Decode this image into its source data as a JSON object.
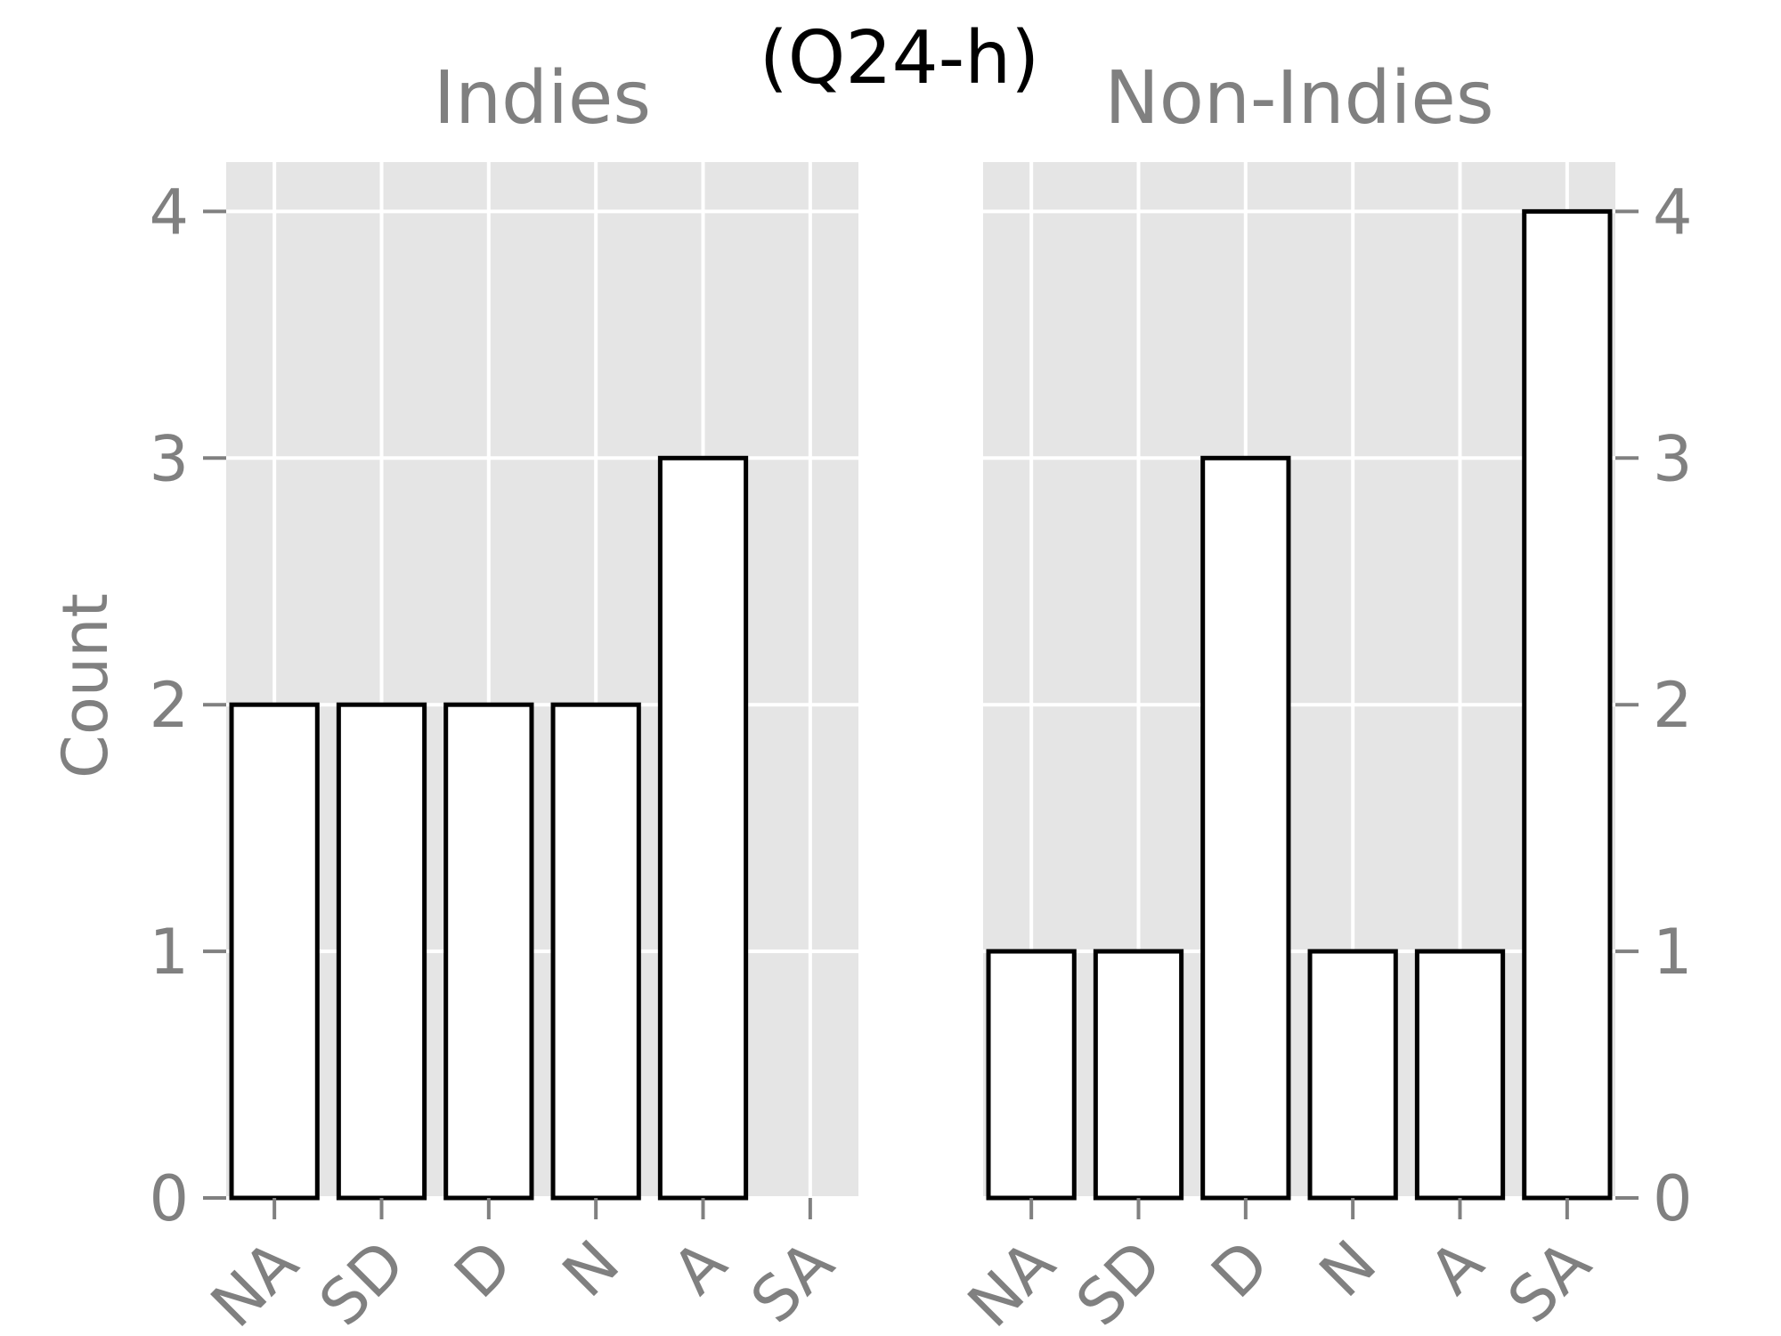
{
  "chart_data": {
    "type": "bar",
    "suptitle": "(Q24-h)",
    "ylabel": "Count",
    "ylim": [
      0,
      4.2
    ],
    "yticks": [
      "0",
      "1",
      "2",
      "3",
      "4"
    ],
    "grid": true,
    "panels": [
      {
        "title": "Indies",
        "categories": [
          "NA",
          "SD",
          "D",
          "N",
          "A",
          "SA"
        ],
        "values": [
          2,
          2,
          2,
          2,
          3,
          0
        ],
        "ytick_side": "left"
      },
      {
        "title": "Non-Indies",
        "categories": [
          "NA",
          "SD",
          "D",
          "N",
          "A",
          "SA"
        ],
        "values": [
          1,
          1,
          3,
          1,
          1,
          4
        ],
        "ytick_side": "right"
      }
    ]
  },
  "colors": {
    "panel_background": "#e5e5e5",
    "grid": "#ffffff",
    "bar_fill": "#ffffff",
    "bar_edge": "#000000",
    "tick_text": "#808080",
    "title_text": "#000000"
  }
}
